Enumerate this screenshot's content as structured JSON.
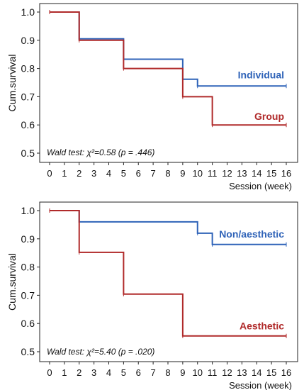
{
  "chart_data": [
    {
      "type": "line",
      "step": true,
      "xlabel": "Session (week)",
      "ylabel": "Cum.survival",
      "xlim": [
        0,
        16
      ],
      "ylim": [
        0.5,
        1.0
      ],
      "x_ticks": [
        "0",
        "1",
        "2",
        "3",
        "4",
        "5",
        "6",
        "7",
        "8",
        "9",
        "10",
        "11",
        "12",
        "13",
        "14",
        "15",
        "16"
      ],
      "y_ticks": [
        "0.5",
        "0.6",
        "0.7",
        "0.8",
        "0.9",
        "1.0"
      ],
      "grid": false,
      "annotation": "Wald test: χ²=0.58 (p = .446)",
      "series": [
        {
          "name": "Individual",
          "color": "#2f63b8",
          "x": [
            0,
            2,
            5,
            9,
            10,
            16
          ],
          "y": [
            1.0,
            0.905,
            0.833,
            0.762,
            0.738,
            0.738
          ]
        },
        {
          "name": "Group",
          "color": "#b02a2a",
          "x": [
            0,
            2,
            5,
            9,
            11,
            16
          ],
          "y": [
            1.0,
            0.9,
            0.8,
            0.7,
            0.6,
            0.6
          ]
        }
      ]
    },
    {
      "type": "line",
      "step": true,
      "xlabel": "Session (week)",
      "ylabel": "Cum.survival",
      "xlim": [
        0,
        16
      ],
      "ylim": [
        0.5,
        1.0
      ],
      "x_ticks": [
        "0",
        "1",
        "2",
        "3",
        "4",
        "5",
        "6",
        "7",
        "8",
        "9",
        "10",
        "11",
        "12",
        "13",
        "14",
        "15",
        "16"
      ],
      "y_ticks": [
        "0.5",
        "0.6",
        "0.7",
        "0.8",
        "0.9",
        "1.0"
      ],
      "grid": false,
      "annotation": "Wald test: χ²=5.40 (p = .020)",
      "series": [
        {
          "name": "Non/aesthetic",
          "color": "#2f63b8",
          "x": [
            0,
            2,
            10,
            11,
            16
          ],
          "y": [
            1.0,
            0.96,
            0.92,
            0.88,
            0.88
          ]
        },
        {
          "name": "Aesthetic",
          "color": "#b02a2a",
          "x": [
            0,
            2,
            5,
            9,
            16
          ],
          "y": [
            1.0,
            0.852,
            0.704,
            0.556,
            0.556
          ]
        }
      ]
    }
  ]
}
